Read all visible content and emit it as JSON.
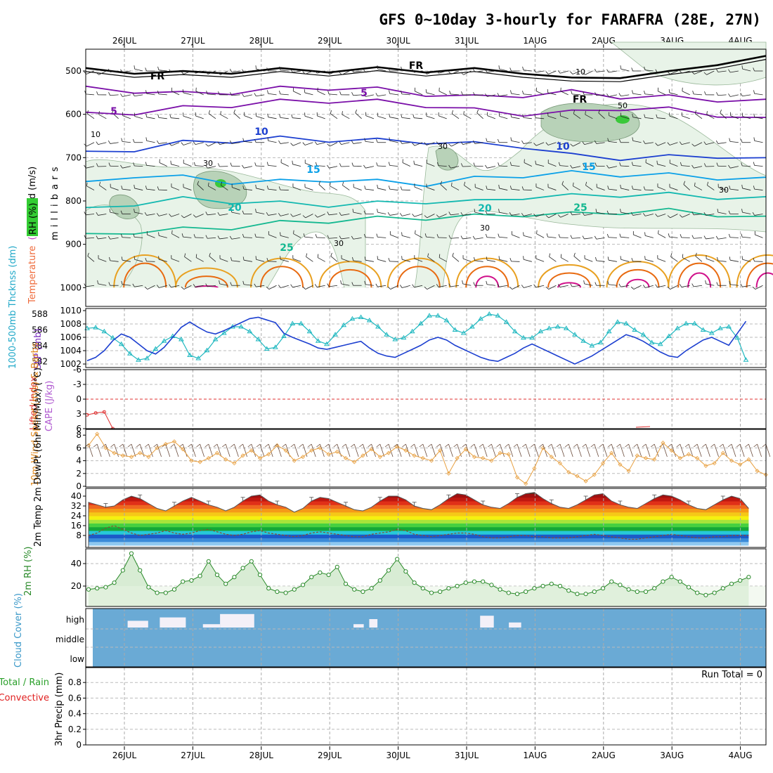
{
  "title": "GFS 0~10day 3-hourly for FARAFRA (28E, 27N)",
  "colors": {
    "temp_cold": "#7a0fa8",
    "temp_blue": "#1c3fd0",
    "temp_sky": "#0aa0e8",
    "temp_teal": "#12b8b0",
    "temp_green": "#14b890",
    "temp_orange": "#e8a020",
    "temp_red": "#e86a10",
    "temp_magenta": "#d0108a",
    "rh_fill": "#e8f3e8",
    "slp_line": "#1c3fd0",
    "thickness_line": "#20b8c0",
    "wind10": "#e8a040",
    "cloud": "#6aaad5",
    "cloud_gap": "#f4f0f8",
    "rh2m": "#2a8a2a"
  },
  "chart_data": [
    {
      "type": "line",
      "name": "cross-section",
      "title": "Temperature (°C) Wind (m/s) RH (%)",
      "x_dates": [
        "26JUL",
        "27JUL",
        "28JUL",
        "29JUL",
        "30JUL",
        "31JUL",
        "1AUG",
        "2AUG",
        "3AUG",
        "4AUG"
      ],
      "ylabel": "m i l l i b a r s",
      "y_label_parts": [
        "Temperature",
        "(°C)",
        "Wind (m/s)",
        "RH (%)"
      ],
      "yticks": [
        "500",
        "600",
        "700",
        "800",
        "900",
        "1000"
      ],
      "ylim": [
        1000,
        450
      ],
      "contour_labels": [
        "FR",
        "FR",
        "FR",
        "5",
        "5",
        "10",
        "10",
        "15",
        "15",
        "20",
        "20",
        "25",
        "25",
        "10",
        "30",
        "30",
        "30",
        "30",
        "30",
        "50",
        "10"
      ],
      "isotherms": [
        {
          "level": -5,
          "kind": "cold",
          "y": [
            540,
            545,
            552,
            548,
            540,
            538,
            542,
            552,
            560,
            555,
            548,
            558,
            560,
            565,
            570
          ]
        },
        {
          "level": 0,
          "kind": "freeze",
          "y": [
            498,
            500,
            505,
            500,
            498,
            497,
            496,
            497,
            498,
            500,
            520,
            510,
            505,
            480,
            470
          ]
        },
        {
          "level": 5,
          "kind": "cold",
          "y": [
            600,
            595,
            585,
            578,
            570,
            568,
            570,
            578,
            590,
            598,
            595,
            585,
            588,
            600,
            612
          ]
        },
        {
          "level": 10,
          "kind": "blue",
          "y": [
            690,
            680,
            665,
            660,
            655,
            658,
            660,
            662,
            668,
            672,
            695,
            700,
            698,
            695,
            705
          ]
        },
        {
          "level": 15,
          "kind": "sky",
          "y": [
            760,
            740,
            745,
            755,
            755,
            750,
            755,
            760,
            748,
            740,
            735,
            738,
            740,
            745,
            750
          ]
        },
        {
          "level": 20,
          "kind": "teal",
          "y": [
            820,
            805,
            795,
            800,
            805,
            808,
            805,
            800,
            802,
            790,
            788,
            785,
            785,
            790,
            795
          ]
        },
        {
          "level": 25,
          "kind": "green",
          "y": [
            880,
            870,
            865,
            860,
            850,
            845,
            840,
            838,
            835,
            830,
            830,
            825,
            822,
            830,
            840
          ]
        }
      ],
      "hot_lobes": [
        {
          "day": 0.3,
          "level": 30,
          "top": 900
        },
        {
          "day": 1.2,
          "level": 35,
          "top": 940
        },
        {
          "day": 2.3,
          "level": 30,
          "top": 910
        },
        {
          "day": 3.3,
          "level": 30,
          "top": 920
        },
        {
          "day": 4.3,
          "level": 30,
          "top": 910
        },
        {
          "day": 5.3,
          "level": 35,
          "top": 910
        },
        {
          "day": 6.5,
          "level": 40,
          "top": 930
        },
        {
          "day": 7.5,
          "level": 40,
          "top": 920
        },
        {
          "day": 8.4,
          "level": 35,
          "top": 900
        },
        {
          "day": 9.4,
          "level": 35,
          "top": 900
        }
      ],
      "wind_u": [
        -5,
        -6,
        -8,
        -6,
        -4,
        -7,
        -9,
        -6,
        -5,
        -7
      ],
      "wind_v": [
        2,
        1,
        -1,
        3,
        2,
        0,
        1,
        2,
        -1,
        1
      ]
    },
    {
      "type": "line",
      "name": "slp-thickness",
      "ylabel_left": "1000-500mb Thcknss (dm)",
      "ylabel_right": "SLP (mb)",
      "yticks_left": [
        "582",
        "584",
        "586",
        "588"
      ],
      "yticks_right": [
        "1002",
        "1004",
        "1006",
        "1008",
        "1010"
      ],
      "ylim_left": [
        582,
        588.5
      ],
      "ylim_right": [
        1001.5,
        1010
      ],
      "x": [
        0,
        0.125,
        0.25,
        0.375,
        0.5,
        0.625,
        0.75,
        0.875,
        1,
        1.125,
        1.25,
        1.375,
        1.5,
        1.625,
        1.75,
        1.875,
        2,
        2.125,
        2.25,
        2.375,
        2.5,
        2.625,
        2.75,
        2.875,
        3,
        3.125,
        3.25,
        3.375,
        3.5,
        3.625,
        3.75,
        3.875,
        4,
        4.125,
        4.25,
        4.375,
        4.5,
        4.625,
        4.75,
        4.875,
        5,
        5.125,
        5.25,
        5.375,
        5.5,
        5.625,
        5.75,
        5.875,
        6,
        6.125,
        6.25,
        6.375,
        6.5,
        6.625,
        6.75,
        6.875,
        7,
        7.125,
        7.25,
        7.375,
        7.5,
        7.625,
        7.75,
        7.875,
        8,
        8.125,
        8.25,
        8.375,
        8.5,
        8.625,
        8.75,
        8.875,
        9,
        9.125,
        9.25,
        9.375,
        9.5,
        9.625
      ],
      "series": [
        {
          "name": "SLP (mb)",
          "axis": "right",
          "values": [
            1002.5,
            1003.0,
            1004.0,
            1005.5,
            1006.5,
            1006.0,
            1005.0,
            1004.0,
            1003.5,
            1004.5,
            1006.0,
            1007.5,
            1008.3,
            1007.5,
            1006.8,
            1006.5,
            1007.0,
            1007.6,
            1008.2,
            1008.8,
            1009.0,
            1008.6,
            1008.2,
            1006.6,
            1006.0,
            1005.5,
            1005.0,
            1004.4,
            1004.2,
            1004.5,
            1004.8,
            1005.1,
            1005.4,
            1004.4,
            1003.6,
            1003.2,
            1003.0,
            1003.6,
            1004.2,
            1004.8,
            1005.6,
            1006.0,
            1005.6,
            1004.8,
            1004.2,
            1003.6,
            1003.0,
            1002.6,
            1002.4,
            1003.0,
            1003.6,
            1004.4,
            1005.0,
            1004.4,
            1003.8,
            1003.2,
            1002.6,
            1002.0,
            1002.6,
            1003.2,
            1004.0,
            1004.8,
            1005.6,
            1006.4,
            1006.0,
            1005.4,
            1004.6,
            1003.8,
            1003.2,
            1003.0,
            1004.0,
            1004.8,
            1005.6,
            1006.0,
            1005.4,
            1004.8,
            1006.6,
            1008.4
          ]
        },
        {
          "name": "1000-500mb Thickness (dm)",
          "axis": "left",
          "values": [
            586.2,
            586.3,
            585.8,
            585.0,
            584.2,
            583.0,
            582.2,
            582.4,
            583.6,
            584.6,
            585.2,
            584.8,
            582.8,
            582.4,
            583.4,
            584.8,
            585.6,
            586.4,
            586.4,
            585.8,
            584.8,
            583.6,
            583.8,
            585.2,
            586.8,
            586.8,
            585.8,
            584.6,
            584.2,
            585.4,
            586.6,
            587.4,
            587.6,
            587.2,
            586.4,
            585.4,
            584.8,
            585.0,
            585.8,
            586.8,
            587.8,
            587.8,
            587.2,
            586.0,
            585.6,
            586.4,
            587.4,
            588.0,
            587.8,
            587.0,
            585.8,
            585.0,
            585.0,
            585.8,
            586.2,
            586.4,
            586.2,
            585.4,
            584.6,
            584.0,
            584.4,
            585.8,
            587.0,
            586.8,
            586.0,
            585.4,
            584.4,
            584.2,
            585.2,
            586.2,
            586.8,
            586.8,
            586.0,
            585.6,
            586.2,
            586.4,
            585.0,
            582.2
          ]
        }
      ]
    },
    {
      "type": "line",
      "name": "stability",
      "ylabel_left": "Lifted Index",
      "ylabel_right": "CAPE (J/kg)",
      "yticks": [
        "-6",
        "-3",
        "0",
        "3",
        "6"
      ],
      "ylim": [
        -6,
        6
      ],
      "series": [
        {
          "name": "Lifted Index",
          "x": [
            0.0,
            0.125,
            0.25,
            0.375
          ],
          "values": [
            3.2,
            2.8,
            2.6,
            6.0
          ]
        }
      ]
    },
    {
      "type": "line",
      "name": "wind10m",
      "ylabel": "10m Wind Speed (m/s) & Barbs",
      "yticks": [
        "0",
        "2",
        "4",
        "6",
        "8"
      ],
      "ylim": [
        0,
        8.8
      ],
      "series": [
        {
          "name": "10m Wind Speed (m/s)",
          "values": [
            6.4,
            8.2,
            6.0,
            5.2,
            4.8,
            4.6,
            5.2,
            4.6,
            6.0,
            6.6,
            7.0,
            5.8,
            4.0,
            3.8,
            4.4,
            5.2,
            4.2,
            3.6,
            4.8,
            5.6,
            4.4,
            5.0,
            6.4,
            5.6,
            4.0,
            4.6,
            5.6,
            6.0,
            5.0,
            5.4,
            4.4,
            3.8,
            4.8,
            5.8,
            4.6,
            5.2,
            6.2,
            5.6,
            4.8,
            4.4,
            4.0,
            5.6,
            2.0,
            4.4,
            5.8,
            4.6,
            4.4,
            4.0,
            5.2,
            5.0,
            1.4,
            0.4,
            2.8,
            6.0,
            4.6,
            3.6,
            2.2,
            1.6,
            0.8,
            1.8,
            3.6,
            5.2,
            3.4,
            2.4,
            4.8,
            4.4,
            4.2,
            6.8,
            5.6,
            4.4,
            5.0,
            4.4,
            3.2,
            3.6,
            5.2,
            4.0,
            3.4,
            4.2,
            2.4,
            1.8
          ]
        }
      ]
    },
    {
      "type": "area",
      "name": "temp2m",
      "ylabel": "2m Temp 2m DewPt (6hr Min/Max) (°C)",
      "yticks": [
        "8",
        "16",
        "24",
        "32",
        "40"
      ],
      "ylim": [
        0,
        44
      ],
      "series": [
        {
          "name": "2m Temp (°C)",
          "values": [
            35,
            33,
            31,
            32,
            37,
            40,
            38,
            34,
            30,
            28,
            32,
            36,
            39,
            36,
            33,
            31,
            28,
            31,
            36,
            40,
            41,
            36,
            33,
            31,
            27,
            30,
            36,
            39,
            38,
            35,
            32,
            29,
            28,
            31,
            36,
            40,
            40,
            37,
            32,
            30,
            29,
            33,
            38,
            42,
            41,
            37,
            33,
            31,
            30,
            34,
            39,
            42,
            43,
            38,
            34,
            31,
            30,
            33,
            37,
            41,
            42,
            36,
            33,
            31,
            30,
            34,
            38,
            41,
            40,
            37,
            33,
            30,
            29,
            33,
            37,
            40,
            38,
            30
          ]
        },
        {
          "name": "2m DewPt (°C)",
          "values": [
            8,
            10,
            14,
            16,
            13,
            10,
            8,
            9,
            10,
            12,
            10,
            9,
            10,
            12,
            13,
            11,
            9,
            8,
            9,
            11,
            12,
            10,
            9,
            8,
            7,
            8,
            10,
            11,
            10,
            9,
            8,
            7,
            7,
            9,
            10,
            11,
            13,
            12,
            9,
            8,
            7,
            8,
            9,
            10,
            10,
            9,
            7,
            6,
            6,
            7,
            8,
            8,
            7,
            7,
            6,
            6,
            6,
            7,
            8,
            9,
            8,
            7,
            6,
            5,
            5,
            6,
            7,
            8,
            9,
            8,
            7,
            6,
            6,
            7,
            7,
            8,
            8,
            8
          ]
        }
      ],
      "bands": [
        "#8fc8f0",
        "#3a8ad8",
        "#1c5ac8",
        "#27c8d8",
        "#14a838",
        "#46d040",
        "#a6e43a",
        "#f5f010",
        "#f5c818",
        "#f59a18",
        "#ef6820",
        "#e03018",
        "#c01810",
        "#a01010",
        "#5a3020"
      ]
    },
    {
      "type": "area",
      "name": "rh2m",
      "ylabel": "2m RH (%)",
      "yticks": [
        "20",
        "40"
      ],
      "ylim": [
        0,
        52
      ],
      "series": [
        {
          "name": "2m RH (%)",
          "values": [
            17,
            18,
            19,
            23,
            34,
            49,
            34,
            19,
            14,
            14,
            17,
            24,
            25,
            29,
            42,
            30,
            22,
            28,
            36,
            42,
            30,
            18,
            15,
            14,
            17,
            21,
            28,
            32,
            30,
            37,
            22,
            17,
            15,
            18,
            25,
            34,
            44,
            33,
            23,
            18,
            14,
            15,
            18,
            20,
            23,
            24,
            24,
            21,
            17,
            14,
            13,
            15,
            18,
            20,
            22,
            20,
            16,
            13,
            13,
            15,
            18,
            24,
            21,
            17,
            15,
            15,
            18,
            24,
            28,
            24,
            19,
            14,
            12,
            14,
            18,
            22,
            25,
            28
          ]
        }
      ]
    },
    {
      "type": "heatmap",
      "name": "cloud",
      "ylabel": "Cloud Cover (%)",
      "rows": [
        "high",
        "middle",
        "low"
      ],
      "gaps": [
        {
          "start": 0.15,
          "end": 0.45,
          "row": "high",
          "cover": 0.4
        },
        {
          "start": 0.62,
          "end": 1.0,
          "row": "high",
          "cover": 0.6
        },
        {
          "start": 1.25,
          "end": 1.5,
          "row": "high",
          "cover": 0.2
        },
        {
          "start": 1.5,
          "end": 2.0,
          "row": "high",
          "cover": 0.8
        },
        {
          "start": 3.45,
          "end": 3.6,
          "row": "high",
          "cover": 0.2
        },
        {
          "start": 3.68,
          "end": 3.8,
          "row": "high",
          "cover": 0.5
        },
        {
          "start": 5.3,
          "end": 5.5,
          "row": "high",
          "cover": 0.7
        },
        {
          "start": 5.72,
          "end": 5.9,
          "row": "high",
          "cover": 0.3
        }
      ]
    },
    {
      "type": "bar",
      "name": "precip",
      "ylabel": "3hr Precip (mm)",
      "legend": [
        "Total / Rain",
        "Convective"
      ],
      "run_total": "Run Total = 0",
      "yticks": [
        "0",
        "0.2",
        "0.4",
        "0.6",
        "0.8"
      ],
      "ylim": [
        0,
        1
      ],
      "x_dates": [
        "26JUL",
        "27JUL",
        "28JUL",
        "29JUL",
        "30JUL",
        "31JUL",
        "1AUG",
        "2AUG",
        "3AUG",
        "4AUG"
      ],
      "values": []
    }
  ]
}
